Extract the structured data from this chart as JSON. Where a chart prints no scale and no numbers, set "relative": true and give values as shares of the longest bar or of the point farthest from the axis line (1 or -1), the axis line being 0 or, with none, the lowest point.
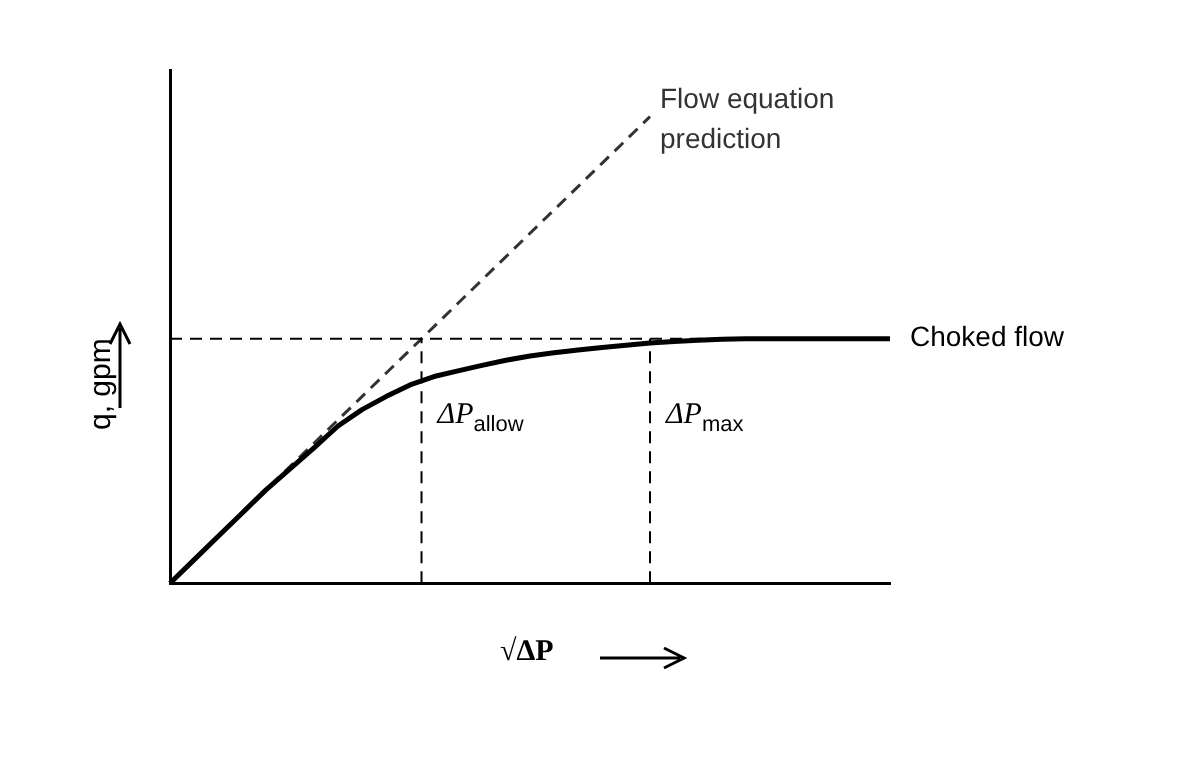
{
  "chart_data": {
    "type": "line",
    "relative": true,
    "xlabel": "√ΔP",
    "ylabel": "q, gpm",
    "grid": false,
    "legend": false,
    "marker": "none",
    "categories": [
      null,
      null,
      null,
      null,
      null,
      null,
      null,
      null,
      null,
      null,
      null,
      null,
      null,
      null,
      null,
      null,
      null,
      null,
      null,
      null,
      null,
      null,
      null,
      null,
      null,
      null,
      null,
      null,
      null,
      null,
      null
    ],
    "series": [
      {
        "name": "Choked flow",
        "color": "#000000",
        "line_style": "solid",
        "values": [
          0,
          0.05,
          0.1,
          0.15,
          0.2,
          0.245,
          0.29,
          0.337,
          0.372,
          0.4,
          0.425,
          0.443,
          0.455,
          0.467,
          0.478,
          0.487,
          0.494,
          0.5,
          0.505,
          0.51,
          0.515,
          0.518,
          0.521,
          0.523,
          0.524,
          0.524,
          0.524,
          0.524,
          0.524,
          0.524,
          0.524
        ]
      },
      {
        "name": "Flow equation prediction",
        "color": "#333333",
        "line_style": "dashed",
        "values": [
          0,
          0.05,
          0.1,
          0.15,
          0.2,
          0.25,
          0.3,
          0.35,
          0.4,
          0.45,
          0.5,
          0.55,
          0.6,
          0.65,
          0.7,
          0.75,
          0.8,
          0.85,
          0.9,
          0.95,
          1,
          null,
          null,
          null,
          null,
          null,
          null,
          null,
          null,
          null,
          null
        ]
      }
    ],
    "ref_lines": [
      {
        "axis": "y",
        "value": 0.524,
        "line_style": "dashed",
        "color": "#000000"
      }
    ],
    "annotations": [
      "ΔP$_{allow}$",
      "ΔP$_{max}$"
    ]
  }
}
